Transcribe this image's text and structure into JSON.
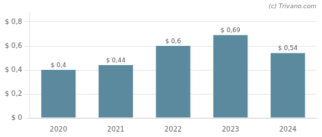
{
  "chart_data": {
    "type": "bar",
    "annotation": "(c) Trivano.com",
    "categories": [
      "2020",
      "2021",
      "2022",
      "2023",
      "2024"
    ],
    "values": [
      0.4,
      0.44,
      0.6,
      0.69,
      0.54
    ],
    "value_labels": [
      "$ 0,4",
      "$ 0,44",
      "$ 0,6",
      "$ 0,69",
      "$ 0,54"
    ],
    "data_labels": true,
    "color": "#5b8a9f",
    "ylim": [
      0,
      0.88
    ],
    "yticks": [
      {
        "value": 0.0,
        "label": "$ 0"
      },
      {
        "value": 0.2,
        "label": "$ 0,2"
      },
      {
        "value": 0.4,
        "label": "$ 0,4"
      },
      {
        "value": 0.6,
        "label": "$ 0,6"
      },
      {
        "value": 0.8,
        "label": "$ 0,8"
      }
    ],
    "grid": true
  }
}
